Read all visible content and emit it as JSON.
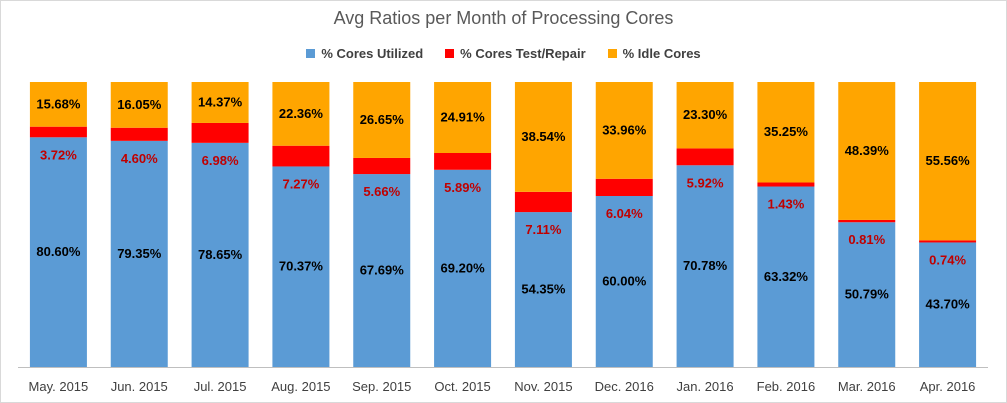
{
  "colors": {
    "utilized": "#5b9bd5",
    "repair": "#ff0000",
    "idle": "#ffa500",
    "label_dark": "#000000",
    "label_red": "#c00000",
    "axis": "#bfbfbf",
    "tick_text": "#404040"
  },
  "chart_data": {
    "type": "bar",
    "stacked": true,
    "title": "Avg Ratios per Month of Processing Cores",
    "xlabel": "",
    "ylabel": "",
    "ylim": [
      0,
      100
    ],
    "grid": false,
    "legend_position": "top",
    "categories": [
      "May. 2015",
      "Jun. 2015",
      "Jul. 2015",
      "Aug. 2015",
      "Sep. 2015",
      "Oct. 2015",
      "Nov. 2015",
      "Dec. 2016",
      "Jan. 2016",
      "Feb. 2016",
      "Mar. 2016",
      "Apr. 2016"
    ],
    "series": [
      {
        "name": "% Cores Utilized",
        "color": "#5b9bd5",
        "values": [
          80.6,
          79.35,
          78.65,
          70.37,
          67.69,
          69.2,
          54.35,
          60.0,
          70.78,
          63.32,
          50.79,
          43.7
        ],
        "labels": [
          "80.60%",
          "79.35%",
          "78.65%",
          "70.37%",
          "67.69%",
          "69.20%",
          "54.35%",
          "60.00%",
          "70.78%",
          "63.32%",
          "50.79%",
          "43.70%"
        ]
      },
      {
        "name": "% Cores Test/Repair",
        "color": "#ff0000",
        "values": [
          3.72,
          4.6,
          6.98,
          7.27,
          5.66,
          5.89,
          7.11,
          6.04,
          5.92,
          1.43,
          0.81,
          0.74
        ],
        "labels": [
          "3.72%",
          "4.60%",
          "6.98%",
          "7.27%",
          "5.66%",
          "5.89%",
          "7.11%",
          "6.04%",
          "5.92%",
          "1.43%",
          "0.81%",
          "0.74%"
        ]
      },
      {
        "name": "% Idle Cores",
        "color": "#ffa500",
        "values": [
          15.68,
          16.05,
          14.37,
          22.36,
          26.65,
          24.91,
          38.54,
          33.96,
          23.3,
          35.25,
          48.39,
          55.56
        ],
        "labels": [
          "15.68%",
          "16.05%",
          "14.37%",
          "22.36%",
          "26.65%",
          "24.91%",
          "38.54%",
          "33.96%",
          "23.30%",
          "35.25%",
          "48.39%",
          "55.56%"
        ]
      }
    ]
  }
}
